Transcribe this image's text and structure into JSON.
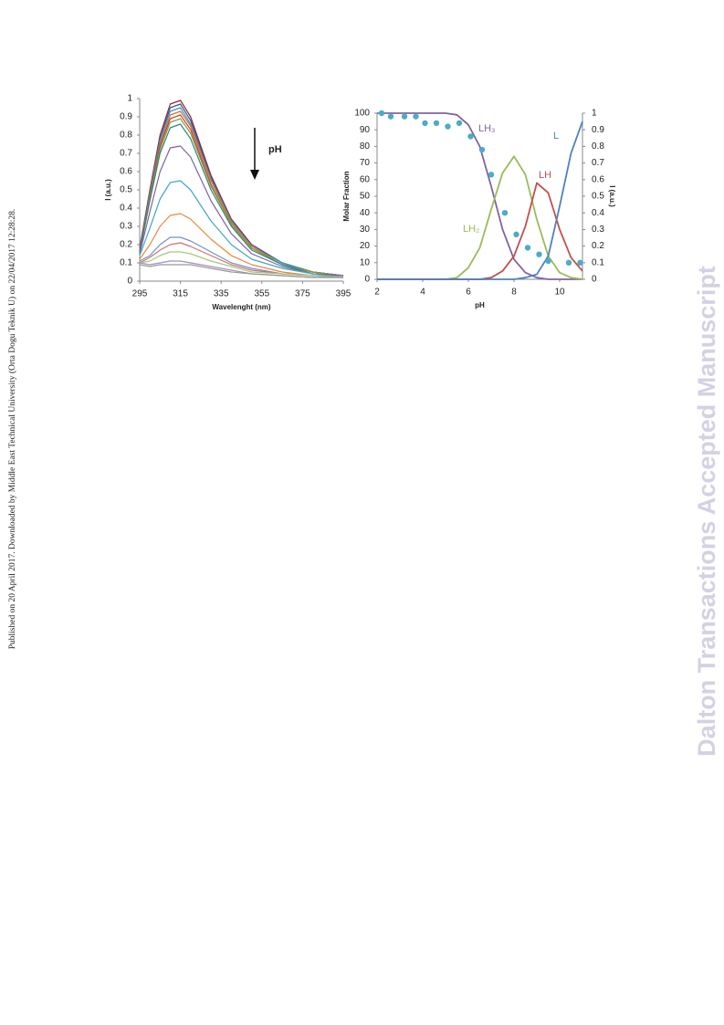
{
  "side_note": "Published on 20 April 2017. Downloaded by Middle East Technical University (Orta Dogu Teknik U) on 22/04/2017 12:28:28.",
  "watermark": "Dalton Transactions Accepted Manuscript",
  "chart_data": [
    {
      "type": "line",
      "xlabel": "Wavelenght (nm)",
      "ylabel": "I (a.u.)",
      "annotation": "pH",
      "xlim": [
        295,
        395
      ],
      "xticks": [
        295,
        315,
        335,
        355,
        375,
        395
      ],
      "ylim": [
        0,
        1
      ],
      "yticks": [
        0,
        0.1,
        0.2,
        0.3,
        0.4,
        0.5,
        0.6,
        0.7,
        0.8,
        0.9,
        1
      ],
      "grid": false,
      "x": [
        295,
        300,
        305,
        310,
        315,
        320,
        330,
        340,
        350,
        365,
        380,
        395
      ],
      "series": [
        {
          "color": "#8b2a2a",
          "values": [
            0.18,
            0.5,
            0.8,
            0.97,
            0.99,
            0.9,
            0.58,
            0.34,
            0.2,
            0.1,
            0.05,
            0.03
          ]
        },
        {
          "color": "#4a4aa0",
          "values": [
            0.18,
            0.49,
            0.78,
            0.95,
            0.97,
            0.88,
            0.57,
            0.33,
            0.2,
            0.1,
            0.05,
            0.03
          ]
        },
        {
          "color": "#2e9ec0",
          "values": [
            0.17,
            0.48,
            0.77,
            0.93,
            0.95,
            0.86,
            0.56,
            0.33,
            0.19,
            0.1,
            0.05,
            0.03
          ]
        },
        {
          "color": "#e07020",
          "values": [
            0.17,
            0.47,
            0.75,
            0.91,
            0.93,
            0.85,
            0.55,
            0.32,
            0.19,
            0.09,
            0.05,
            0.03
          ]
        },
        {
          "color": "#c04040",
          "values": [
            0.17,
            0.46,
            0.74,
            0.89,
            0.91,
            0.83,
            0.53,
            0.31,
            0.18,
            0.09,
            0.05,
            0.03
          ]
        },
        {
          "color": "#8a9a40",
          "values": [
            0.16,
            0.45,
            0.72,
            0.87,
            0.89,
            0.81,
            0.52,
            0.31,
            0.18,
            0.09,
            0.05,
            0.03
          ]
        },
        {
          "color": "#2a8a7a",
          "values": [
            0.16,
            0.44,
            0.7,
            0.84,
            0.86,
            0.78,
            0.5,
            0.3,
            0.17,
            0.09,
            0.04,
            0.03
          ]
        },
        {
          "color": "#8060a8",
          "values": [
            0.15,
            0.38,
            0.6,
            0.73,
            0.74,
            0.68,
            0.44,
            0.26,
            0.15,
            0.08,
            0.04,
            0.03
          ]
        },
        {
          "color": "#40a8c8",
          "values": [
            0.14,
            0.29,
            0.45,
            0.54,
            0.55,
            0.5,
            0.33,
            0.2,
            0.12,
            0.07,
            0.04,
            0.02
          ]
        },
        {
          "color": "#e8883a",
          "values": [
            0.12,
            0.2,
            0.3,
            0.36,
            0.37,
            0.34,
            0.23,
            0.14,
            0.09,
            0.05,
            0.03,
            0.02
          ]
        },
        {
          "color": "#7090d0",
          "values": [
            0.11,
            0.14,
            0.2,
            0.24,
            0.24,
            0.22,
            0.16,
            0.1,
            0.07,
            0.04,
            0.03,
            0.02
          ]
        },
        {
          "color": "#d07070",
          "values": [
            0.1,
            0.13,
            0.17,
            0.2,
            0.21,
            0.19,
            0.14,
            0.09,
            0.06,
            0.04,
            0.03,
            0.02
          ]
        },
        {
          "color": "#a8c878",
          "values": [
            0.1,
            0.11,
            0.14,
            0.16,
            0.16,
            0.15,
            0.11,
            0.08,
            0.05,
            0.04,
            0.03,
            0.02
          ]
        },
        {
          "color": "#a090c0",
          "values": [
            0.1,
            0.09,
            0.1,
            0.11,
            0.11,
            0.1,
            0.08,
            0.06,
            0.04,
            0.03,
            0.02,
            0.02
          ]
        },
        {
          "color": "#999999",
          "values": [
            0.09,
            0.08,
            0.09,
            0.09,
            0.09,
            0.09,
            0.07,
            0.05,
            0.04,
            0.03,
            0.02,
            0.02
          ]
        }
      ]
    },
    {
      "type": "line",
      "xlabel": "pH",
      "ylabel": "Molar Fraction",
      "y2label": "I (a.u.)",
      "xlim": [
        2,
        11
      ],
      "xticks": [
        2,
        4,
        6,
        8,
        10
      ],
      "ylim": [
        0,
        100
      ],
      "yticks": [
        0,
        10,
        20,
        30,
        40,
        50,
        60,
        70,
        80,
        90,
        100
      ],
      "y2lim": [
        0,
        1
      ],
      "y2ticks": [
        0,
        0.1,
        0.2,
        0.3,
        0.4,
        0.5,
        0.6,
        0.7,
        0.8,
        0.9,
        1
      ],
      "grid": false,
      "series": [
        {
          "name": "LH₃",
          "color": "#8064a2",
          "x": [
            2,
            2.5,
            3,
            3.5,
            4,
            4.5,
            5,
            5.5,
            6,
            6.5,
            7,
            7.5,
            8,
            8.5,
            9,
            9.5,
            10,
            10.5,
            11
          ],
          "values": [
            100,
            100,
            100,
            100,
            100,
            100,
            100,
            99,
            93,
            80,
            56,
            30,
            12,
            4,
            1,
            0,
            0,
            0,
            0
          ]
        },
        {
          "name": "LH₂",
          "color": "#9bbb59",
          "x": [
            2,
            2.5,
            3,
            3.5,
            4,
            4.5,
            5,
            5.5,
            6,
            6.5,
            7,
            7.5,
            8,
            8.5,
            9,
            9.5,
            10,
            10.5,
            11
          ],
          "values": [
            0,
            0,
            0,
            0,
            0,
            0,
            0,
            1,
            7,
            19,
            42,
            64,
            74,
            63,
            36,
            14,
            4,
            1,
            0
          ]
        },
        {
          "name": "LH",
          "color": "#c0504d",
          "x": [
            2,
            2.5,
            3,
            3.5,
            4,
            4.5,
            5,
            5.5,
            6,
            6.5,
            7,
            7.5,
            8,
            8.5,
            9,
            9.5,
            10,
            10.5,
            11
          ],
          "values": [
            0,
            0,
            0,
            0,
            0,
            0,
            0,
            0,
            0,
            0,
            1,
            5,
            14,
            32,
            58,
            52,
            30,
            13,
            5
          ]
        },
        {
          "name": "L",
          "color": "#4f81bd",
          "x": [
            2,
            2.5,
            3,
            3.5,
            4,
            4.5,
            5,
            5.5,
            6,
            6.5,
            7,
            7.5,
            8,
            8.5,
            9,
            9.5,
            10,
            10.5,
            11
          ],
          "values": [
            0,
            0,
            0,
            0,
            0,
            0,
            0,
            0,
            0,
            0,
            0,
            0,
            0,
            1,
            3,
            14,
            44,
            76,
            95
          ]
        },
        {
          "type": "scatter",
          "axis": "y2",
          "color": "#4bacc6",
          "x": [
            2.2,
            2.6,
            3.2,
            3.7,
            4.1,
            4.6,
            5.1,
            5.6,
            6.1,
            6.6,
            7.0,
            7.6,
            8.1,
            8.6,
            9.1,
            9.5,
            10.4,
            10.9
          ],
          "values": [
            1.0,
            0.98,
            0.98,
            0.98,
            0.94,
            0.94,
            0.92,
            0.94,
            0.86,
            0.78,
            0.63,
            0.4,
            0.27,
            0.19,
            0.15,
            0.11,
            0.1,
            0.1
          ]
        }
      ]
    }
  ]
}
